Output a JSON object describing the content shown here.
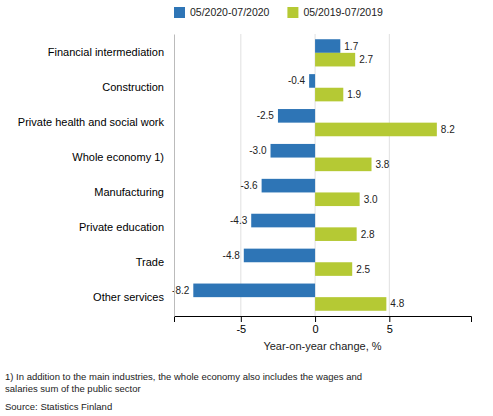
{
  "chart_data": {
    "type": "bar",
    "orientation": "horizontal",
    "categories": [
      "Financial intermediation",
      "Construction",
      "Private health and social work",
      "Whole economy 1)",
      "Manufacturing",
      "Private education",
      "Trade",
      "Other services"
    ],
    "series": [
      {
        "name": "05/2020-07/2020",
        "color": "#2e75b6",
        "values": [
          1.7,
          -0.4,
          -2.5,
          -3.0,
          -3.6,
          -4.3,
          -4.8,
          -8.2
        ],
        "value_labels": [
          "1.7",
          "-0.4",
          "-2.5",
          "-3.0",
          "-3.6",
          "-4.3",
          "-4.8",
          "-8.2"
        ]
      },
      {
        "name": "05/2019-07/2019",
        "color": "#b5c934",
        "values": [
          2.7,
          1.9,
          8.2,
          3.8,
          3.0,
          2.8,
          2.5,
          4.8
        ],
        "value_labels": [
          "2.7",
          "1.9",
          "8.2",
          "3.8",
          "3.0",
          "2.8",
          "2.5",
          "4.8"
        ]
      }
    ],
    "xlabel": "Year-on-year change, %",
    "xlim": [
      -9.5,
      10.5
    ],
    "xticks": [
      -5,
      0,
      5
    ],
    "grid": true,
    "legend": "upper left",
    "data_labels": true,
    "annotations": [
      "1) In addition to the main industries, the whole economy also includes the wages and\nsalaries sum of the public sector",
      "Source: Statistics Finland"
    ]
  }
}
